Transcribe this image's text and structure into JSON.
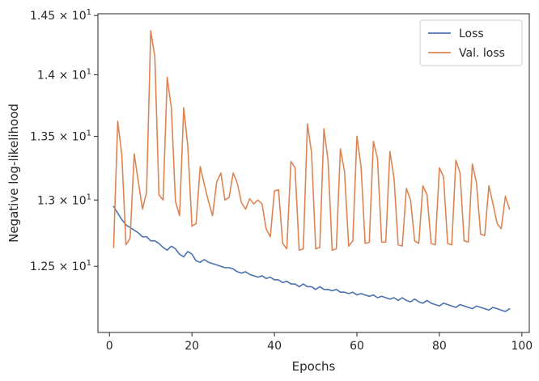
{
  "chart_data": {
    "type": "line",
    "xlabel": "Epochs",
    "ylabel": "Negative log-likelihood",
    "xlim": [
      -2.8,
      101.8
    ],
    "ylim": [
      12.02,
      14.515
    ],
    "yscale": "log",
    "grid": false,
    "legend_position": "top-right",
    "x_ticks": [
      {
        "value": 0,
        "label": "0"
      },
      {
        "value": 20,
        "label": "20"
      },
      {
        "value": 40,
        "label": "40"
      },
      {
        "value": 60,
        "label": "60"
      },
      {
        "value": 80,
        "label": "80"
      },
      {
        "value": 100,
        "label": "100"
      }
    ],
    "y_ticks": [
      {
        "value": 12.5,
        "mantissa": "1.25",
        "base": "10",
        "exp": "1"
      },
      {
        "value": 13.0,
        "mantissa": "1.3",
        "base": "10",
        "exp": "1"
      },
      {
        "value": 13.5,
        "mantissa": "1.35",
        "base": "10",
        "exp": "1"
      },
      {
        "value": 14.0,
        "mantissa": "1.4",
        "base": "10",
        "exp": "1"
      },
      {
        "value": 14.5,
        "mantissa": "1.45",
        "base": "10",
        "exp": "1"
      }
    ],
    "series": [
      {
        "name": "Loss",
        "color": "#4c72b0",
        "x": [
          1,
          2,
          3,
          4,
          5,
          6,
          7,
          8,
          9,
          10,
          11,
          12,
          13,
          14,
          15,
          16,
          17,
          18,
          19,
          20,
          21,
          22,
          23,
          24,
          25,
          26,
          27,
          28,
          29,
          30,
          31,
          32,
          33,
          34,
          35,
          36,
          37,
          38,
          39,
          40,
          41,
          42,
          43,
          44,
          45,
          46,
          47,
          48,
          49,
          50,
          51,
          52,
          53,
          54,
          55,
          56,
          57,
          58,
          59,
          60,
          61,
          62,
          63,
          64,
          65,
          66,
          67,
          68,
          69,
          70,
          71,
          72,
          73,
          74,
          75,
          76,
          77,
          78,
          79,
          80,
          81,
          82,
          83,
          84,
          85,
          86,
          87,
          88,
          89,
          90,
          91,
          92,
          93,
          94,
          95,
          96,
          97
        ],
        "values": [
          12.95,
          12.9,
          12.85,
          12.81,
          12.79,
          12.77,
          12.75,
          12.72,
          12.72,
          12.69,
          12.69,
          12.67,
          12.64,
          12.62,
          12.65,
          12.63,
          12.59,
          12.57,
          12.61,
          12.59,
          12.54,
          12.53,
          12.55,
          12.53,
          12.52,
          12.51,
          12.5,
          12.49,
          12.49,
          12.48,
          12.46,
          12.45,
          12.46,
          12.44,
          12.43,
          12.42,
          12.43,
          12.41,
          12.42,
          12.4,
          12.4,
          12.38,
          12.39,
          12.37,
          12.37,
          12.35,
          12.37,
          12.35,
          12.35,
          12.33,
          12.35,
          12.33,
          12.33,
          12.32,
          12.33,
          12.31,
          12.31,
          12.3,
          12.31,
          12.29,
          12.3,
          12.29,
          12.28,
          12.29,
          12.27,
          12.28,
          12.27,
          12.26,
          12.27,
          12.25,
          12.27,
          12.25,
          12.24,
          12.26,
          12.24,
          12.23,
          12.25,
          12.23,
          12.22,
          12.21,
          12.23,
          12.22,
          12.21,
          12.2,
          12.22,
          12.21,
          12.2,
          12.19,
          12.21,
          12.2,
          12.19,
          12.18,
          12.2,
          12.19,
          12.18,
          12.17,
          12.19
        ]
      },
      {
        "name": "Val. loss",
        "color": "#dd8452",
        "x": [
          1,
          2,
          3,
          4,
          5,
          6,
          7,
          8,
          9,
          10,
          11,
          12,
          13,
          14,
          15,
          16,
          17,
          18,
          19,
          20,
          21,
          22,
          23,
          24,
          25,
          26,
          27,
          28,
          29,
          30,
          31,
          32,
          33,
          34,
          35,
          36,
          37,
          38,
          39,
          40,
          41,
          42,
          43,
          44,
          45,
          46,
          47,
          48,
          49,
          50,
          51,
          52,
          53,
          54,
          55,
          56,
          57,
          58,
          59,
          60,
          61,
          62,
          63,
          64,
          65,
          66,
          67,
          68,
          69,
          70,
          71,
          72,
          73,
          74,
          75,
          76,
          77,
          78,
          79,
          80,
          81,
          82,
          83,
          84,
          85,
          86,
          87,
          88,
          89,
          90,
          91,
          92,
          93,
          94,
          95,
          96,
          97
        ],
        "values": [
          12.64,
          13.62,
          13.35,
          12.66,
          12.71,
          13.36,
          13.14,
          12.93,
          13.06,
          14.37,
          14.15,
          13.04,
          13.0,
          13.98,
          13.73,
          12.99,
          12.88,
          13.73,
          13.42,
          12.8,
          12.82,
          13.26,
          13.12,
          12.99,
          12.88,
          13.14,
          13.21,
          13.0,
          13.02,
          13.21,
          13.13,
          12.98,
          12.93,
          13.01,
          12.97,
          13.0,
          12.97,
          12.78,
          12.72,
          13.07,
          13.08,
          12.67,
          12.63,
          13.3,
          13.25,
          12.62,
          12.63,
          13.6,
          13.37,
          12.63,
          12.64,
          13.56,
          13.31,
          12.62,
          12.63,
          13.4,
          13.22,
          12.65,
          12.69,
          13.5,
          13.26,
          12.67,
          12.68,
          13.46,
          13.32,
          12.68,
          12.68,
          13.38,
          13.17,
          12.66,
          12.65,
          13.09,
          13.0,
          12.69,
          12.67,
          13.11,
          13.04,
          12.67,
          12.66,
          13.25,
          13.18,
          12.67,
          12.66,
          13.31,
          13.21,
          12.69,
          12.68,
          13.28,
          13.13,
          12.74,
          12.73,
          13.11,
          12.97,
          12.82,
          12.78,
          13.03,
          12.93
        ]
      }
    ]
  }
}
